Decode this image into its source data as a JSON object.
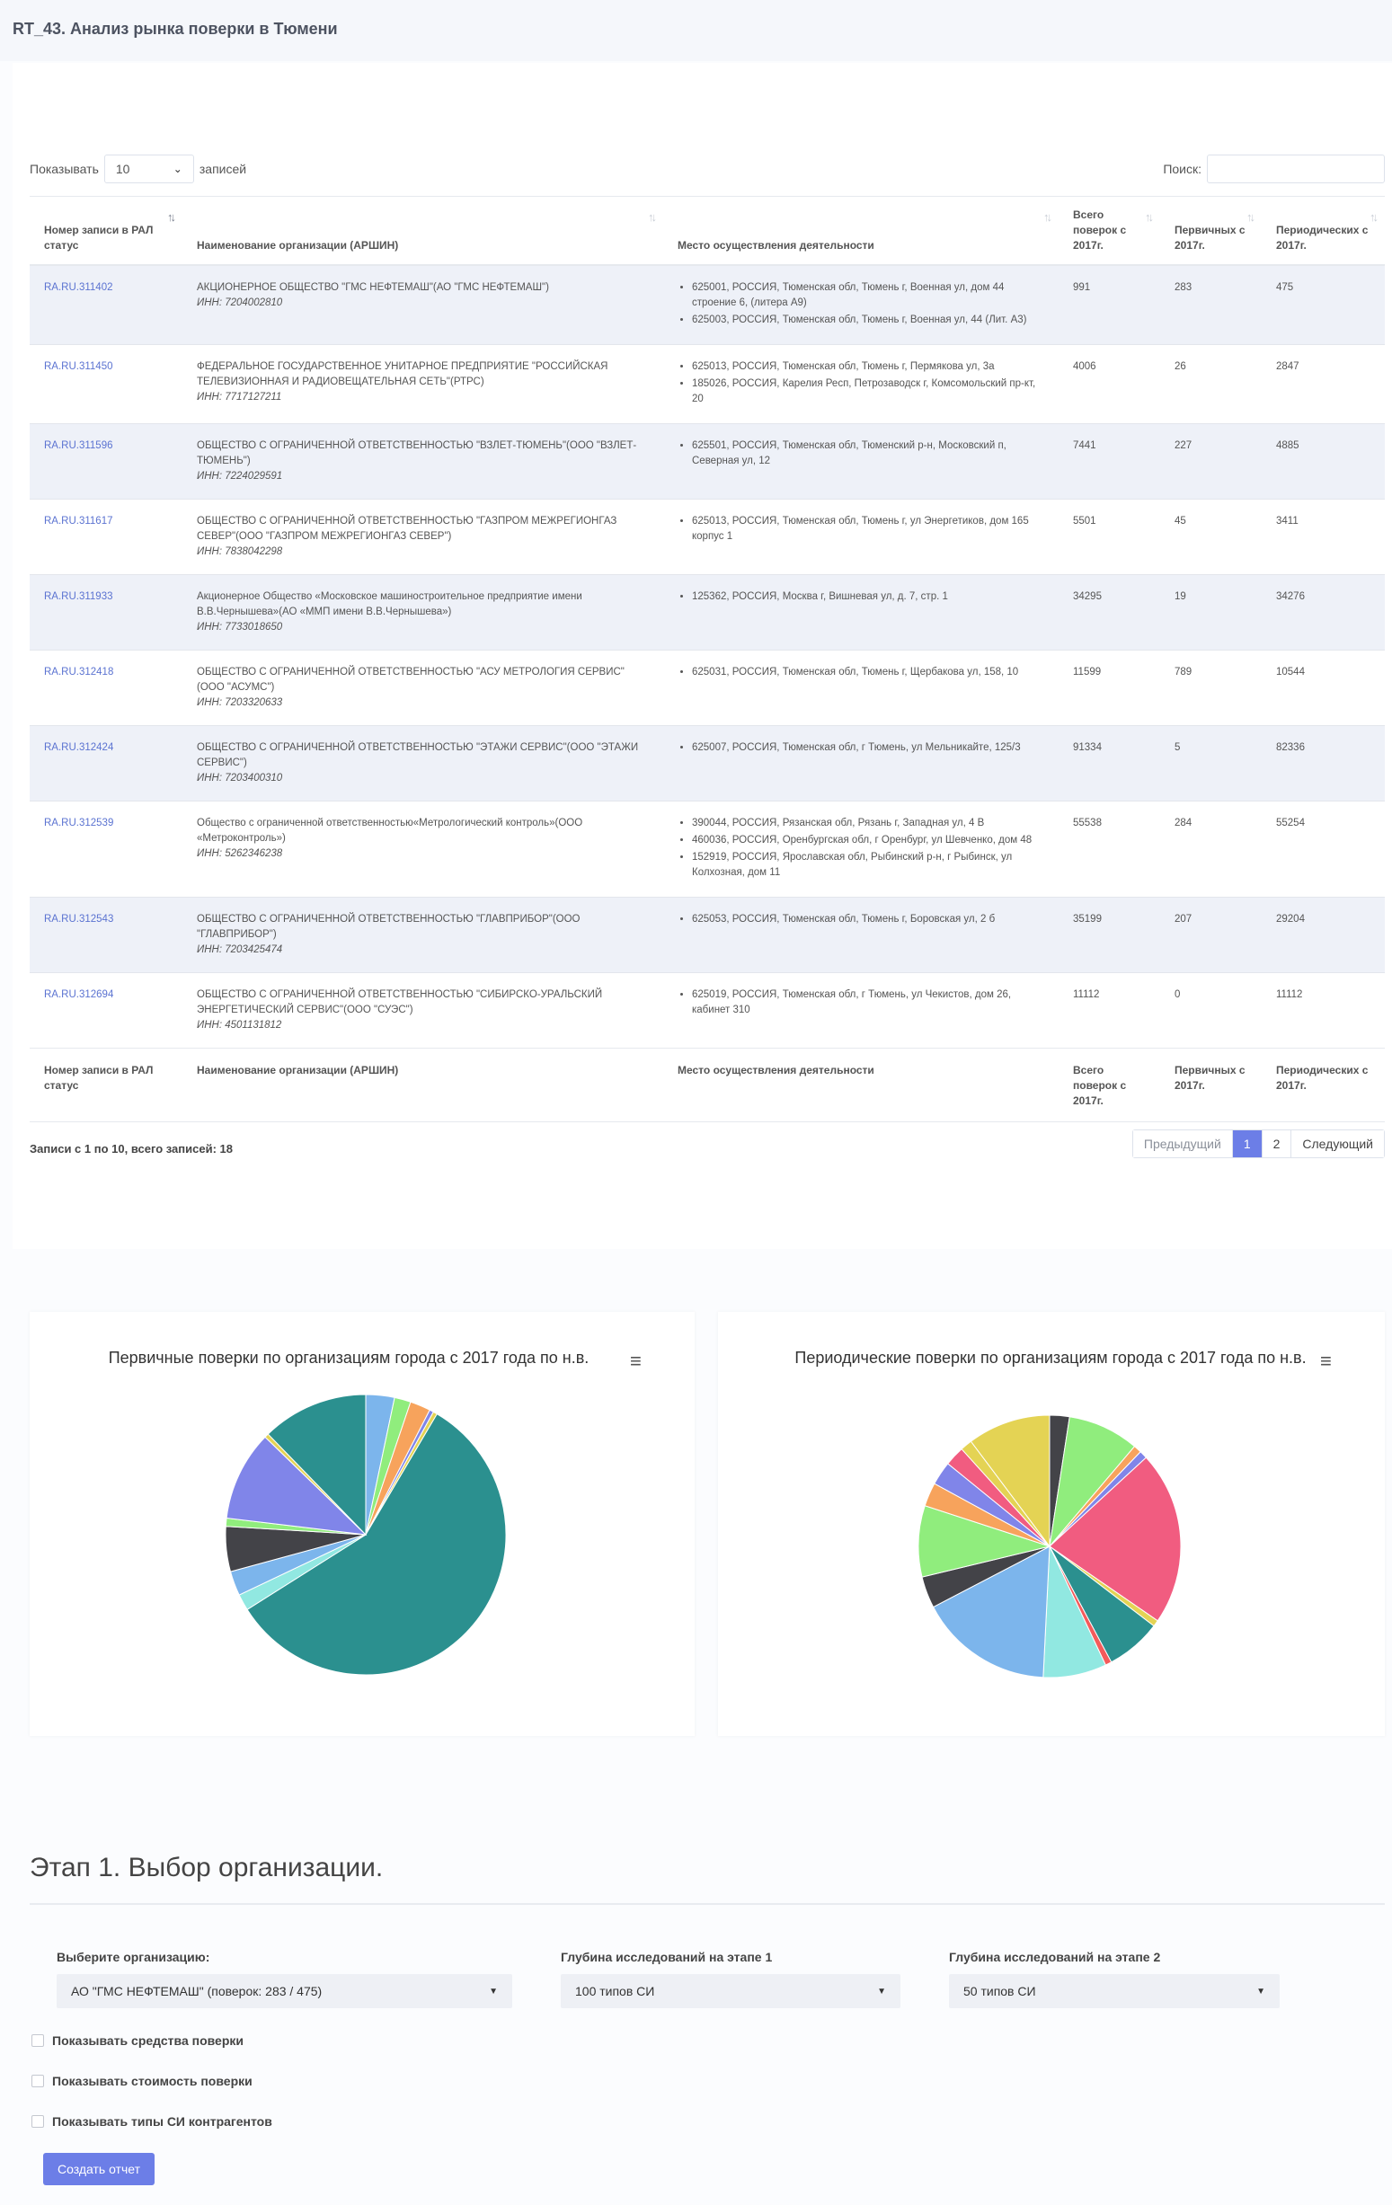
{
  "page": {
    "title": "RT_43. Анализ рынка поверки в Тюмени"
  },
  "table_controls": {
    "show_label": "Показывать",
    "length_value": "10",
    "records_label": "записей",
    "search_label": "Поиск:",
    "search_value": ""
  },
  "table": {
    "headers": [
      "Номер записи в РАЛ статус",
      "Наименование организации (АРШИН)",
      "Место осуществления деятельности",
      "Всего поверок с 2017г.",
      "Первичных с 2017г.",
      "Периодических с 2017г."
    ],
    "rows": [
      {
        "id": "RA.RU.311402",
        "org": "АКЦИОНЕРНОЕ ОБЩЕСТВО \"ГМС НЕФТЕМАШ\"(АО \"ГМС НЕФТЕМАШ\")",
        "inn": "ИНН: 7204002810",
        "addresses": [
          "625001, РОССИЯ, Тюменская обл, Тюмень г, Военная ул, дом 44 строение 6, (литера А9)",
          "625003, РОССИЯ, Тюменская обл, Тюмень г, Военная ул, 44 (Лит. А3)"
        ],
        "total": "991",
        "primary": "283",
        "periodic": "475"
      },
      {
        "id": "RA.RU.311450",
        "org": "ФЕДЕРАЛЬНОЕ ГОСУДАРСТВЕННОЕ УНИТАРНОЕ ПРЕДПРИЯТИЕ \"РОССИЙСКАЯ ТЕЛЕВИЗИОННАЯ И РАДИОВЕЩАТЕЛЬНАЯ СЕТЬ\"(РТРС)",
        "inn": "ИНН: 7717127211",
        "addresses": [
          "625013, РОССИЯ, Тюменская обл, Тюмень г, Пермякова ул, 3а",
          "185026, РОССИЯ, Карелия Респ, Петрозаводск г, Комсомольский пр-кт, 20"
        ],
        "total": "4006",
        "primary": "26",
        "periodic": "2847"
      },
      {
        "id": "RA.RU.311596",
        "org": "ОБЩЕСТВО С ОГРАНИЧЕННОЙ ОТВЕТСТВЕННОСТЬЮ \"ВЗЛЕТ-ТЮМЕНЬ\"(ООО \"ВЗЛЕТ-ТЮМЕНЬ\")",
        "inn": "ИНН: 7224029591",
        "addresses": [
          "625501, РОССИЯ, Тюменская обл, Тюменский р-н, Московский п, Северная ул, 12"
        ],
        "total": "7441",
        "primary": "227",
        "periodic": "4885"
      },
      {
        "id": "RA.RU.311617",
        "org": "ОБЩЕСТВО С ОГРАНИЧЕННОЙ ОТВЕТСТВЕННОСТЬЮ \"ГАЗПРОМ МЕЖРЕГИОНГАЗ СЕВЕР\"(ООО \"ГАЗПРОМ МЕЖРЕГИОНГАЗ СЕВЕР\")",
        "inn": "ИНН: 7838042298",
        "addresses": [
          "625013, РОССИЯ, Тюменская обл, Тюмень г, ул Энергетиков, дом 165 корпус 1"
        ],
        "total": "5501",
        "primary": "45",
        "periodic": "3411"
      },
      {
        "id": "RA.RU.311933",
        "org": "Акционерное Общество «Московское машиностроительное предприятие имени В.В.Чернышева»(АО «ММП имени В.В.Чернышева»)",
        "inn": "ИНН: 7733018650",
        "addresses": [
          "125362, РОССИЯ, Москва г, Вишневая ул, д. 7, стр. 1"
        ],
        "total": "34295",
        "primary": "19",
        "periodic": "34276"
      },
      {
        "id": "RA.RU.312418",
        "org": "ОБЩЕСТВО С ОГРАНИЧЕННОЙ ОТВЕТСТВЕННОСТЬЮ \"АСУ МЕТРОЛОГИЯ СЕРВИС\"(ООО \"АСУМС\")",
        "inn": "ИНН: 7203320633",
        "addresses": [
          "625031, РОССИЯ, Тюменская обл, Тюмень г, Щербакова ул, 158, 10"
        ],
        "total": "11599",
        "primary": "789",
        "periodic": "10544"
      },
      {
        "id": "RA.RU.312424",
        "org": "ОБЩЕСТВО С ОГРАНИЧЕННОЙ ОТВЕТСТВЕННОСТЬЮ \"ЭТАЖИ СЕРВИС\"(ООО \"ЭТАЖИ СЕРВИС\")",
        "inn": "ИНН: 7203400310",
        "addresses": [
          "625007, РОССИЯ, Тюменская обл, г Тюмень, ул Мельникайте, 125/3"
        ],
        "total": "91334",
        "primary": "5",
        "periodic": "82336"
      },
      {
        "id": "RA.RU.312539",
        "org": "Общество с ограниченной ответственностью«Метрологический контроль»(ООО «Метроконтроль»)",
        "inn": "ИНН: 5262346238",
        "addresses": [
          "390044, РОССИЯ, Рязанская обл, Рязань г, Западная ул, 4 В",
          "460036, РОССИЯ, Оренбургская обл, г Оренбург, ул Шевченко, дом 48",
          "152919, РОССИЯ, Ярославская обл, Рыбинский р-н, г Рыбинск, ул Колхозная, дом 11"
        ],
        "total": "55538",
        "primary": "284",
        "periodic": "55254"
      },
      {
        "id": "RA.RU.312543",
        "org": "ОБЩЕСТВО С ОГРАНИЧЕННОЙ ОТВЕТСТВЕННОСТЬЮ \"ГЛАВПРИБОР\"(ООО \"ГЛАВПРИБОР\")",
        "inn": "ИНН: 7203425474",
        "addresses": [
          "625053, РОССИЯ, Тюменская обл, Тюмень г, Боровская ул, 2 б"
        ],
        "total": "35199",
        "primary": "207",
        "periodic": "29204"
      },
      {
        "id": "RA.RU.312694",
        "org": "ОБЩЕСТВО С ОГРАНИЧЕННОЙ ОТВЕТСТВЕННОСТЬЮ \"СИБИРСКО-УРАЛЬСКИЙ ЭНЕРГЕТИЧЕСКИЙ СЕРВИС\"(ООО \"СУЭС\")",
        "inn": "ИНН: 4501131812",
        "addresses": [
          "625019, РОССИЯ, Тюменская обл, г Тюмень, ул Чекистов, дом 26, кабинет 310"
        ],
        "total": "11112",
        "primary": "0",
        "periodic": "11112"
      }
    ]
  },
  "pagination": {
    "info": "Записи с 1 по 10, всего записей: 18",
    "prev": "Предыдущий",
    "pages": [
      "1",
      "2"
    ],
    "next": "Следующий"
  },
  "chart_data": [
    {
      "type": "pie",
      "title": "Первичные поверки по организациям города с 2017 года по н.в.",
      "values": [
        3.5,
        2.0,
        2.5,
        0.5,
        0.5,
        61.0,
        2.0,
        3.0,
        5.5,
        1.0,
        11.0,
        0.5,
        13.0
      ],
      "colors": [
        "#7cb5ec",
        "#90ed7d",
        "#f7a35c",
        "#8085e9",
        "#e4d354",
        "#2b908f",
        "#91e8e1",
        "#7cb5ec",
        "#434348",
        "#90ed7d",
        "#8085e9",
        "#e4d354",
        "#2b908f"
      ]
    },
    {
      "type": "pie",
      "title": "Периодические поверки по организациям города с 2017 года по н.в.",
      "values": [
        2.5,
        9.0,
        1.0,
        1.0,
        22.0,
        0.8,
        7.0,
        0.8,
        8.0,
        17.0,
        4.0,
        9.0,
        3.0,
        3.0,
        2.5,
        1.5,
        10.5
      ],
      "colors": [
        "#434348",
        "#90ed7d",
        "#f7a35c",
        "#8085e9",
        "#f15c80",
        "#e4d354",
        "#2b908f",
        "#f45b5b",
        "#91e8e1",
        "#7cb5ec",
        "#434348",
        "#90ed7d",
        "#f7a35c",
        "#8085e9",
        "#f15c80",
        "#e4d354",
        "#e4d354"
      ]
    }
  ],
  "menu_icon": "hamburger-icon",
  "stage": {
    "title": "Этап 1. Выбор организации."
  },
  "form": {
    "org_label": "Выберите организацию:",
    "org_value": "АО \"ГМС НЕФТЕМАШ\" (поверок: 283 / 475)",
    "depth1_label": "Глубина исследований на этапе 1",
    "depth1_value": "100 типов СИ",
    "depth2_label": "Глубина исследований на этапе 2",
    "depth2_value": "50 типов СИ",
    "checkboxes": [
      "Показывать средства поверки",
      "Показывать стоимость поверки",
      "Показывать типы СИ контрагентов"
    ],
    "submit": "Создать отчет"
  }
}
